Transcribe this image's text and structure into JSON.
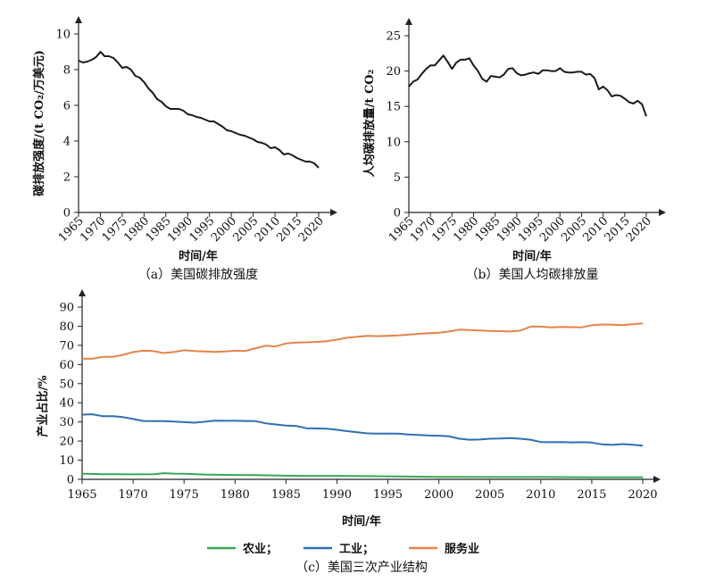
{
  "chart_data": [
    {
      "type": "line",
      "caption": "（a）美国碳排放强度",
      "xlabel": "时间/年",
      "ylabel": "碳排放强度/(t CO₂/万美元)",
      "xlim": [
        1965,
        2020
      ],
      "ylim": [
        0,
        10
      ],
      "xticks": [
        "1965",
        "1970",
        "1975",
        "1980",
        "1985",
        "1990",
        "1995",
        "2000",
        "2005",
        "2010",
        "2015",
        "2020"
      ],
      "yticks": [
        "0",
        "2",
        "4",
        "6",
        "8",
        "10"
      ],
      "series": [
        {
          "name": "碳排放强度",
          "color": "#1a1a1a",
          "x": [
            1965,
            1966,
            1967,
            1968,
            1969,
            1970,
            1971,
            1972,
            1973,
            1974,
            1975,
            1976,
            1977,
            1978,
            1979,
            1980,
            1981,
            1982,
            1983,
            1984,
            1985,
            1986,
            1987,
            1988,
            1989,
            1990,
            1991,
            1992,
            1993,
            1994,
            1995,
            1996,
            1997,
            1998,
            1999,
            2000,
            2001,
            2002,
            2003,
            2004,
            2005,
            2006,
            2007,
            2008,
            2009,
            2010,
            2011,
            2012,
            2013,
            2014,
            2015,
            2016,
            2017,
            2018,
            2019,
            2020
          ],
          "values": [
            8.5,
            8.4,
            8.45,
            8.55,
            8.7,
            9.0,
            8.75,
            8.75,
            8.65,
            8.4,
            8.1,
            8.15,
            8.0,
            7.65,
            7.55,
            7.3,
            6.95,
            6.7,
            6.35,
            6.2,
            5.95,
            5.8,
            5.8,
            5.8,
            5.7,
            5.5,
            5.45,
            5.35,
            5.3,
            5.2,
            5.1,
            5.1,
            4.95,
            4.8,
            4.6,
            4.55,
            4.45,
            4.35,
            4.3,
            4.2,
            4.1,
            3.95,
            3.9,
            3.8,
            3.6,
            3.65,
            3.5,
            3.25,
            3.3,
            3.2,
            3.05,
            2.95,
            2.85,
            2.85,
            2.75,
            2.5
          ]
        }
      ]
    },
    {
      "type": "line",
      "caption": "（b）美国人均碳排放量",
      "xlabel": "时间/年",
      "ylabel": "人均碳排放量/t CO₂",
      "xlim": [
        1965,
        2020
      ],
      "ylim": [
        0,
        25
      ],
      "xticks": [
        "1965",
        "1970",
        "1975",
        "1980",
        "1985",
        "1990",
        "1995",
        "2000",
        "2005",
        "2010",
        "2015",
        "2020"
      ],
      "yticks": [
        "0",
        "5",
        "10",
        "15",
        "20",
        "25"
      ],
      "series": [
        {
          "name": "人均碳排放量",
          "color": "#1a1a1a",
          "x": [
            1965,
            1966,
            1967,
            1968,
            1969,
            1970,
            1971,
            1972,
            1973,
            1974,
            1975,
            1976,
            1977,
            1978,
            1979,
            1980,
            1981,
            1982,
            1983,
            1984,
            1985,
            1986,
            1987,
            1988,
            1989,
            1990,
            1991,
            1992,
            1993,
            1994,
            1995,
            1996,
            1997,
            1998,
            1999,
            2000,
            2001,
            2002,
            2003,
            2004,
            2005,
            2006,
            2007,
            2008,
            2009,
            2010,
            2011,
            2012,
            2013,
            2014,
            2015,
            2016,
            2017,
            2018,
            2019,
            2020
          ],
          "values": [
            17.8,
            18.5,
            18.8,
            19.6,
            20.3,
            20.8,
            20.8,
            21.5,
            22.2,
            21.3,
            20.3,
            21.2,
            21.6,
            21.6,
            21.8,
            20.8,
            20.0,
            18.9,
            18.5,
            19.3,
            19.2,
            19.1,
            19.5,
            20.3,
            20.4,
            19.7,
            19.4,
            19.5,
            19.7,
            19.8,
            19.6,
            20.1,
            20.1,
            20.0,
            20.0,
            20.4,
            19.9,
            19.8,
            19.8,
            19.9,
            19.9,
            19.5,
            19.6,
            19.0,
            17.4,
            17.8,
            17.3,
            16.4,
            16.6,
            16.5,
            16.1,
            15.6,
            15.4,
            15.8,
            15.3,
            13.6
          ]
        }
      ]
    },
    {
      "type": "line",
      "caption": "（c）美国三次产业结构",
      "xlabel": "时间/年",
      "ylabel": "产业占比/%",
      "xlim": [
        1965,
        2020
      ],
      "ylim": [
        0,
        90
      ],
      "xticks": [
        "1965",
        "1970",
        "1975",
        "1980",
        "1985",
        "1990",
        "1995",
        "2000",
        "2005",
        "2010",
        "2015",
        "2020"
      ],
      "yticks": [
        "0",
        "10",
        "20",
        "30",
        "40",
        "50",
        "60",
        "70",
        "80",
        "90"
      ],
      "legend": [
        "农业；",
        "工业；",
        "服务业"
      ],
      "series": [
        {
          "name": "农业；",
          "color": "#3aa655",
          "x": [
            1965,
            1967,
            1970,
            1972,
            1973,
            1974,
            1975,
            1977,
            1980,
            1982,
            1983,
            1985,
            1987,
            1990,
            1995,
            2000,
            2005,
            2010,
            2015,
            2020
          ],
          "values": [
            3.0,
            2.7,
            2.6,
            2.7,
            3.2,
            3.0,
            2.9,
            2.5,
            2.3,
            2.2,
            2.1,
            1.9,
            1.8,
            1.8,
            1.6,
            1.3,
            1.2,
            1.2,
            1.1,
            1.1
          ]
        },
        {
          "name": "工业；",
          "color": "#2f6fb3",
          "x": [
            1965,
            1966,
            1967,
            1968,
            1969,
            1970,
            1971,
            1972,
            1973,
            1974,
            1975,
            1976,
            1977,
            1978,
            1979,
            1980,
            1981,
            1982,
            1983,
            1984,
            1985,
            1986,
            1987,
            1988,
            1989,
            1990,
            1991,
            1992,
            1993,
            1994,
            1995,
            1996,
            1997,
            1998,
            1999,
            2000,
            2001,
            2002,
            2003,
            2004,
            2005,
            2006,
            2007,
            2008,
            2009,
            2010,
            2011,
            2012,
            2013,
            2014,
            2015,
            2016,
            2017,
            2018,
            2019,
            2020
          ],
          "values": [
            33.8,
            34.0,
            33.0,
            33.0,
            32.5,
            31.5,
            30.5,
            30.4,
            30.4,
            30.2,
            29.9,
            29.6,
            30.1,
            30.7,
            30.6,
            30.6,
            30.5,
            30.4,
            29.3,
            28.7,
            28.1,
            27.9,
            26.7,
            26.6,
            26.5,
            25.9,
            25.2,
            24.6,
            24.0,
            23.9,
            23.9,
            23.9,
            23.4,
            23.2,
            22.9,
            22.8,
            22.5,
            21.2,
            20.7,
            20.8,
            21.2,
            21.3,
            21.6,
            21.2,
            20.7,
            19.5,
            19.4,
            19.5,
            19.3,
            19.4,
            19.2,
            18.3,
            18.0,
            18.4,
            18.1,
            17.6
          ]
        },
        {
          "name": "服务业",
          "color": "#e6834a",
          "x": [
            1965,
            1966,
            1967,
            1968,
            1969,
            1970,
            1971,
            1972,
            1973,
            1974,
            1975,
            1976,
            1977,
            1978,
            1979,
            1980,
            1981,
            1982,
            1983,
            1984,
            1985,
            1986,
            1987,
            1988,
            1989,
            1990,
            1991,
            1992,
            1993,
            1994,
            1995,
            1996,
            1997,
            1998,
            1999,
            2000,
            2001,
            2002,
            2003,
            2004,
            2005,
            2006,
            2007,
            2008,
            2009,
            2010,
            2011,
            2012,
            2013,
            2014,
            2015,
            2016,
            2017,
            2018,
            2019,
            2020
          ],
          "values": [
            63.0,
            63.0,
            64.0,
            64.0,
            65.0,
            66.5,
            67.2,
            67.0,
            66.0,
            66.5,
            67.5,
            67.0,
            66.8,
            66.6,
            66.8,
            67.2,
            67.0,
            68.5,
            69.8,
            69.4,
            71.0,
            71.5,
            71.6,
            71.8,
            72.2,
            73.0,
            74.0,
            74.5,
            75.0,
            74.8,
            75.0,
            75.2,
            75.6,
            76.0,
            76.4,
            76.6,
            77.2,
            78.2,
            78.0,
            77.8,
            77.5,
            77.4,
            77.2,
            77.7,
            79.8,
            79.8,
            79.4,
            79.6,
            79.5,
            79.4,
            80.5,
            80.9,
            80.8,
            80.6,
            81.0,
            81.5
          ]
        }
      ]
    }
  ]
}
